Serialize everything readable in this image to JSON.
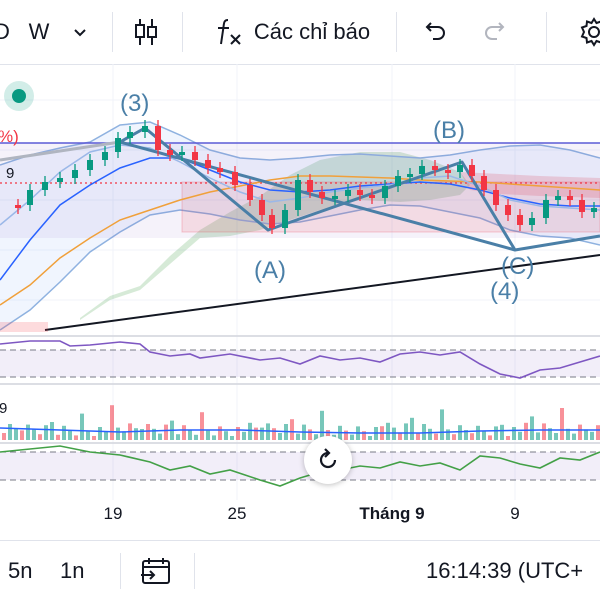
{
  "toolbar": {
    "symbol_partial": "D",
    "interval": "W",
    "indicators_label": "Các chỉ báo",
    "icons": [
      "chevron-down-icon",
      "candlestick-icon",
      "fx-icon",
      "undo-icon",
      "redo-icon",
      "gear-icon"
    ]
  },
  "chart": {
    "price_label_top": "%)",
    "price_label_mid": "9",
    "volume_label": "9",
    "wave_labels": [
      "(3)",
      "(A)",
      "(B)",
      "(C)",
      "(4)"
    ],
    "x_axis": [
      "19",
      "25",
      "Tháng 9",
      "9"
    ],
    "colors": {
      "up": "#089981",
      "down": "#f23645",
      "pattern": "#4a7fa7",
      "bollinger": "#8fb2e0",
      "ma": "#f0a03a",
      "rsi": "#7e57c2",
      "green_osc": "#43a047"
    }
  },
  "bottom": {
    "range_5d": "5n",
    "range_1d": "1n",
    "time": "16:14:39 (UTC+",
    "icons": [
      "date-range-icon"
    ]
  }
}
